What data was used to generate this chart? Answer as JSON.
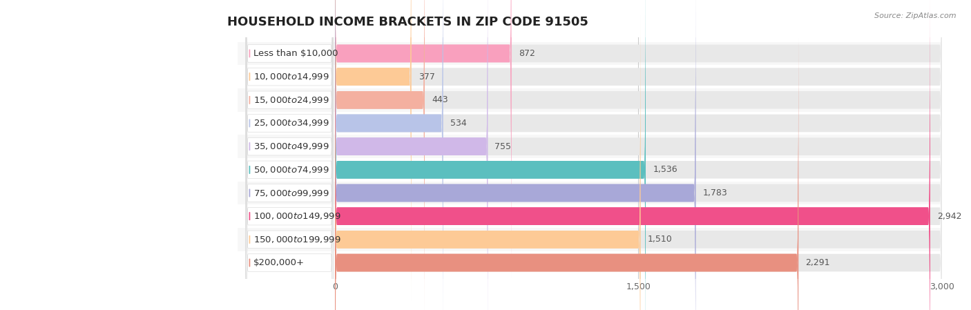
{
  "title": "HOUSEHOLD INCOME BRACKETS IN ZIP CODE 91505",
  "source": "Source: ZipAtlas.com",
  "categories": [
    "Less than $10,000",
    "$10,000 to $14,999",
    "$15,000 to $24,999",
    "$25,000 to $34,999",
    "$35,000 to $49,999",
    "$50,000 to $74,999",
    "$75,000 to $99,999",
    "$100,000 to $149,999",
    "$150,000 to $199,999",
    "$200,000+"
  ],
  "values": [
    872,
    377,
    443,
    534,
    755,
    1536,
    1783,
    2942,
    1510,
    2291
  ],
  "bar_colors": [
    "#F9A0BE",
    "#FDCA96",
    "#F4B0A0",
    "#B8C4E8",
    "#D0B8E8",
    "#5BBFBF",
    "#A8A8D8",
    "#F0508A",
    "#FDCA96",
    "#E89080"
  ],
  "background_color": "#ffffff",
  "row_bg_even": "#f7f7f7",
  "row_bg_odd": "#ffffff",
  "bar_bg_color": "#e8e8e8",
  "label_pill_color": "#ffffff",
  "xlim": [
    0,
    3000
  ],
  "xticks": [
    0,
    1500,
    3000
  ],
  "title_fontsize": 13,
  "label_fontsize": 9.5,
  "value_fontsize": 9
}
